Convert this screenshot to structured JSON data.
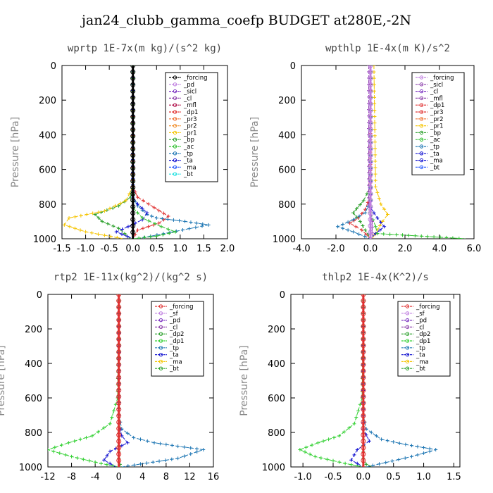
{
  "title": "jan24_clubb_gamma_coefp  BUDGET at280E,-2N",
  "chart_data": [
    {
      "type": "line",
      "title": "wprtp  1E-7x(m kg)/(s^2 kg)",
      "ylabel": "Pressure [hPa]",
      "xlim": [
        -1.5,
        2.0
      ],
      "ylim": [
        1000,
        0
      ],
      "xticks": [
        -1.5,
        -1.0,
        -0.5,
        0.0,
        0.5,
        1.0,
        1.5,
        2.0
      ],
      "xtick_labels": [
        "-1.5",
        "-1.0",
        "-0.5",
        "0.0",
        "0.5",
        "1.0",
        "1.5",
        "2.0"
      ],
      "yticks": [
        0,
        200,
        400,
        600,
        800,
        1000
      ],
      "legend": [
        "_forcing",
        "_pd",
        "_sicl",
        "_cl",
        "_mfl",
        "_dp1",
        "_pr3",
        "_pr2",
        "_pr1",
        "_bp",
        "_ac",
        "_tp",
        "_ta",
        "_ma",
        "_bt"
      ],
      "legend_position": "top-right",
      "series": [
        {
          "name": "_bp",
          "color": "#2ca02c",
          "x": [
            0,
            0,
            -0.05,
            -0.3,
            -0.8,
            -0.65,
            -0.3,
            -0.05
          ],
          "y": [
            0,
            700,
            760,
            810,
            860,
            900,
            940,
            1000
          ]
        },
        {
          "name": "_pr1",
          "color": "#f5c400",
          "x": [
            0,
            0,
            -0.15,
            -0.6,
            -1.35,
            -1.45,
            -1.0,
            -0.2
          ],
          "y": [
            0,
            700,
            780,
            840,
            880,
            920,
            960,
            1000
          ]
        },
        {
          "name": "_dp1",
          "color": "#e03030",
          "x": [
            0,
            0,
            0.1,
            0.45,
            0.75,
            0.55,
            0.1,
            0
          ],
          "y": [
            0,
            700,
            760,
            820,
            870,
            910,
            950,
            1000
          ]
        },
        {
          "name": "_tp",
          "color": "#1f77b4",
          "x": [
            0,
            0,
            0.1,
            0.3,
            0.5,
            1.1,
            1.6,
            0.1
          ],
          "y": [
            0,
            760,
            810,
            860,
            880,
            900,
            920,
            1000
          ]
        },
        {
          "name": "_ta",
          "color": "#1010d0",
          "x": [
            0,
            0,
            0.1,
            0.3,
            0.2,
            -0.1,
            -0.35,
            0
          ],
          "y": [
            0,
            760,
            800,
            850,
            890,
            930,
            960,
            1000
          ]
        },
        {
          "name": "_ac",
          "color": "#30c030",
          "x": [
            0,
            0,
            0.2,
            0.6,
            0.9,
            0.5,
            0.0
          ],
          "y": [
            0,
            820,
            880,
            930,
            960,
            985,
            1000
          ]
        },
        {
          "name": "_forcing",
          "color": "#000000",
          "x": [
            0,
            0
          ],
          "y": [
            0,
            1000
          ]
        }
      ]
    },
    {
      "type": "line",
      "title": "wpthlp  1E-4x(m K)/s^2",
      "ylabel": "Pressure [hPa]",
      "xlim": [
        -4.0,
        6.0
      ],
      "ylim": [
        1000,
        0
      ],
      "xticks": [
        -4.0,
        -2.0,
        0.0,
        2.0,
        4.0,
        6.0
      ],
      "xtick_labels": [
        "-4.0",
        "-2.0",
        "0.0",
        "2.0",
        "4.0",
        "6.0"
      ],
      "yticks": [
        0,
        200,
        400,
        600,
        800,
        1000
      ],
      "legend": [
        "_forcing",
        "_sicl",
        "_cl",
        "_mfl",
        "_dp1",
        "_pr3",
        "_pr2",
        "_pr1",
        "_bp",
        "_ac",
        "_tp",
        "_ta",
        "_ma",
        "_bt"
      ],
      "legend_position": "top-right",
      "series": [
        {
          "name": "_pr1",
          "color": "#f5c400",
          "x": [
            0.2,
            0.3,
            0.6,
            1.0,
            0.7,
            0.4,
            0.1
          ],
          "y": [
            0,
            700,
            800,
            860,
            900,
            950,
            1000
          ]
        },
        {
          "name": "_bp",
          "color": "#2ca02c",
          "x": [
            0,
            0,
            -0.4,
            -1.0,
            -0.6,
            -0.3,
            0
          ],
          "y": [
            0,
            700,
            780,
            850,
            900,
            950,
            1000
          ]
        },
        {
          "name": "_dp1",
          "color": "#e03030",
          "x": [
            0,
            0,
            -0.3,
            -0.7,
            -1.2,
            -0.5,
            0
          ],
          "y": [
            0,
            750,
            830,
            880,
            910,
            950,
            1000
          ]
        },
        {
          "name": "_tp",
          "color": "#1f77b4",
          "x": [
            0,
            0,
            -0.3,
            -1.0,
            -1.9,
            -1.0,
            0
          ],
          "y": [
            0,
            780,
            850,
            890,
            930,
            960,
            1000
          ]
        },
        {
          "name": "_ta",
          "color": "#1010d0",
          "x": [
            0,
            0,
            0.4,
            0.8,
            0.3,
            0
          ],
          "y": [
            0,
            820,
            880,
            930,
            970,
            1000
          ]
        },
        {
          "name": "_ac",
          "color": "#30c030",
          "x": [
            0,
            0,
            0.3,
            0.4,
            5.5
          ],
          "y": [
            0,
            850,
            930,
            970,
            1000
          ]
        },
        {
          "name": "_sicl",
          "color": "#8e44ad",
          "x": [
            -0.1,
            -0.1,
            0.1,
            0.1
          ],
          "y": [
            0,
            800,
            900,
            1000
          ]
        },
        {
          "name": "_forcing",
          "color": "#c080e0",
          "x": [
            0,
            0
          ],
          "y": [
            0,
            1000
          ]
        }
      ]
    },
    {
      "type": "line",
      "title": "rtp2  1E-11x(kg^2)/(kg^2 s)",
      "ylabel": "Pressure [hPa]",
      "xlim": [
        -12,
        16
      ],
      "ylim": [
        1000,
        0
      ],
      "xticks": [
        -12,
        -8,
        -4,
        0,
        4,
        8,
        12,
        16
      ],
      "xtick_labels": [
        "-12",
        "-8",
        "-4",
        "0",
        "4",
        "8",
        "12",
        "16"
      ],
      "yticks": [
        0,
        200,
        400,
        600,
        800,
        1000
      ],
      "legend": [
        "_forcing",
        "_sf",
        "_pd",
        "_cl",
        "_dp2",
        "_dp1",
        "_tp",
        "_ta",
        "_ma",
        "_bt"
      ],
      "legend_position": "top-right",
      "series": [
        {
          "name": "_dp1",
          "color": "#30d030",
          "x": [
            0,
            -0.2,
            -1.5,
            -4.5,
            -8.5,
            -12,
            -8,
            -3,
            0
          ],
          "y": [
            0,
            600,
            750,
            820,
            860,
            900,
            940,
            980,
            1000
          ]
        },
        {
          "name": "_tp",
          "color": "#1f77b4",
          "x": [
            0,
            0,
            0.5,
            2.5,
            6,
            10,
            14.3,
            10,
            0.5
          ],
          "y": [
            0,
            700,
            780,
            830,
            860,
            880,
            900,
            950,
            1000
          ]
        },
        {
          "name": "_ta",
          "color": "#1010d0",
          "x": [
            0,
            0,
            0.5,
            1.5,
            -1.5,
            -2.5,
            -0.5
          ],
          "y": [
            0,
            750,
            820,
            860,
            910,
            960,
            1000
          ]
        },
        {
          "name": "_dp2",
          "color": "#2ca02c",
          "x": [
            0,
            0,
            0.2,
            0.5
          ],
          "y": [
            0,
            950,
            985,
            1000
          ]
        },
        {
          "name": "_forcing",
          "color": "#e03030",
          "x": [
            0,
            0
          ],
          "y": [
            0,
            1000
          ]
        }
      ]
    },
    {
      "type": "line",
      "title": "thlp2  1E-4x(K^2)/s",
      "ylabel": "Pressure [hPa]",
      "xlim": [
        -1.2,
        1.6
      ],
      "ylim": [
        1000,
        0
      ],
      "xticks": [
        -1.0,
        -0.5,
        0.0,
        0.5,
        1.0,
        1.5
      ],
      "xtick_labels": [
        "-1.0",
        "-0.5",
        "0.0",
        "0.5",
        "1.0",
        "1.5"
      ],
      "yticks": [
        0,
        200,
        400,
        600,
        800,
        1000
      ],
      "legend": [
        "_forcing",
        "_sf",
        "_pd",
        "_cl",
        "_dp2",
        "_dp1",
        "_tp",
        "_ta",
        "_ma",
        "_bt"
      ],
      "legend_position": "top-right",
      "series": [
        {
          "name": "_dp1",
          "color": "#30d030",
          "x": [
            0,
            -0.02,
            -0.15,
            -0.4,
            -0.75,
            -1.05,
            -0.8,
            -0.3,
            0
          ],
          "y": [
            0,
            600,
            750,
            820,
            860,
            900,
            940,
            980,
            1000
          ]
        },
        {
          "name": "_tp",
          "color": "#1f77b4",
          "x": [
            0,
            0,
            0.05,
            0.3,
            0.7,
            1.2,
            0.8,
            0.05
          ],
          "y": [
            0,
            700,
            780,
            840,
            870,
            900,
            940,
            1000
          ]
        },
        {
          "name": "_ta",
          "color": "#1010d0",
          "x": [
            0,
            0,
            0.1,
            -0.1,
            -0.2,
            0
          ],
          "y": [
            0,
            780,
            850,
            900,
            960,
            1000
          ]
        },
        {
          "name": "_dp2",
          "color": "#2ca02c",
          "x": [
            0,
            0,
            0.05,
            0.15
          ],
          "y": [
            0,
            950,
            985,
            1000
          ]
        },
        {
          "name": "_forcing",
          "color": "#e03030",
          "x": [
            0,
            0
          ],
          "y": [
            0,
            1000
          ]
        }
      ]
    }
  ]
}
